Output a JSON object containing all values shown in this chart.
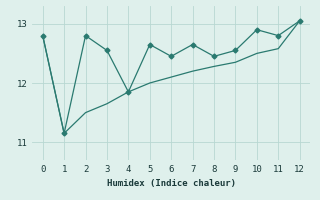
{
  "series1_x": [
    0,
    1,
    2,
    3,
    4,
    5,
    6,
    7,
    8,
    9,
    10,
    11,
    12
  ],
  "series1_y": [
    12.8,
    11.15,
    12.8,
    12.55,
    11.85,
    12.65,
    12.45,
    12.65,
    12.45,
    12.55,
    12.9,
    12.8,
    13.05
  ],
  "series2_x": [
    0,
    1,
    2,
    3,
    4,
    5,
    6,
    7,
    8,
    9,
    10,
    11,
    12
  ],
  "series2_y": [
    12.8,
    11.15,
    11.5,
    11.65,
    11.85,
    12.0,
    12.1,
    12.2,
    12.28,
    12.35,
    12.5,
    12.58,
    13.05
  ],
  "color": "#2a7a70",
  "xlabel": "Humidex (Indice chaleur)",
  "xlim": [
    -0.5,
    12.5
  ],
  "ylim": [
    10.7,
    13.3
  ],
  "yticks": [
    11,
    12,
    13
  ],
  "xticks": [
    0,
    1,
    2,
    3,
    4,
    5,
    6,
    7,
    8,
    9,
    10,
    11,
    12
  ],
  "bg_color": "#dff0ec",
  "grid_color": "#b8d8d2"
}
